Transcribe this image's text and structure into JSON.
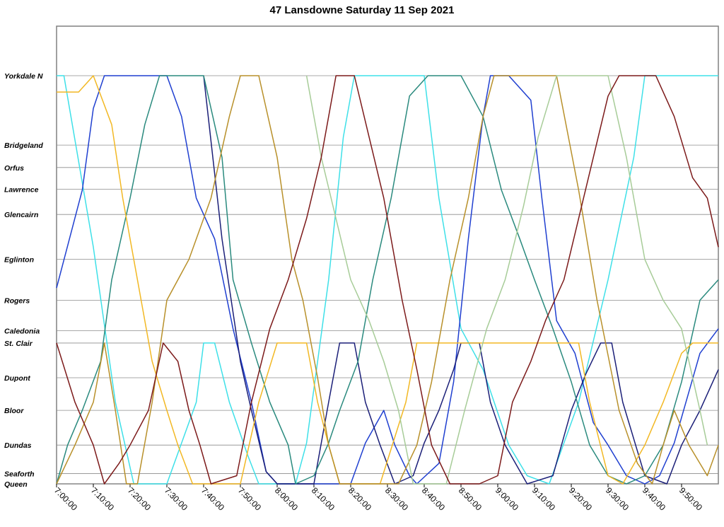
{
  "chart_data": {
    "type": "line",
    "title": "47 Lansdowne Saturday 11 Sep 2021",
    "x_unit": "time of day",
    "xlim": [
      "7:00:00",
      "10:00:00"
    ],
    "x_ticks": [
      "7:00:00",
      "7:10:00",
      "7:20:00",
      "7:30:00",
      "7:40:00",
      "7:50:00",
      "8:00:00",
      "8:10:00",
      "8:20:00",
      "8:30:00",
      "8:40:00",
      "8:50:00",
      "9:00:00",
      "9:10:00",
      "9:20:00",
      "9:30:00",
      "9:40:00",
      "9:50:00"
    ],
    "y_axis": "stops (Queen at bottom, Yorkdale N at top)",
    "stops": [
      {
        "name": "Yorkdale N",
        "pos": 0.0
      },
      {
        "name": "Bridgeland",
        "pos": 0.17
      },
      {
        "name": "Orfus",
        "pos": 0.225
      },
      {
        "name": "Lawrence",
        "pos": 0.278
      },
      {
        "name": "Glencairn",
        "pos": 0.34
      },
      {
        "name": "Eglinton",
        "pos": 0.45
      },
      {
        "name": "Rogers",
        "pos": 0.55
      },
      {
        "name": "Caledonia",
        "pos": 0.625
      },
      {
        "name": "St. Clair",
        "pos": 0.655
      },
      {
        "name": "Dupont",
        "pos": 0.74
      },
      {
        "name": "Bloor",
        "pos": 0.82
      },
      {
        "name": "Dundas",
        "pos": 0.905
      },
      {
        "name": "Seaforth",
        "pos": 0.975
      },
      {
        "name": "Queen",
        "pos": 1.0
      }
    ],
    "grid": true,
    "legend": "none",
    "series": [
      {
        "color": "#3EE0E8",
        "points": [
          [
            "7:00:00",
            0.0
          ],
          [
            "7:02:00",
            0.0
          ],
          [
            "7:10:00",
            0.42
          ],
          [
            "7:16:00",
            0.8
          ],
          [
            "7:21:00",
            1.0
          ],
          [
            "7:26:00",
            1.0
          ],
          [
            "7:30:00",
            1.0
          ],
          [
            "7:38:00",
            0.8
          ],
          [
            "7:40:00",
            0.655
          ],
          [
            "7:43:00",
            0.655
          ],
          [
            "7:47:00",
            0.8
          ],
          [
            "7:52:00",
            0.93
          ],
          [
            "7:55:00",
            1.0
          ],
          [
            "8:05:00",
            1.0
          ],
          [
            "8:08:00",
            0.9
          ],
          [
            "8:14:00",
            0.5
          ],
          [
            "8:18:00",
            0.15
          ],
          [
            "8:21:00",
            0.0
          ],
          [
            "8:40:00",
            0.0
          ],
          [
            "8:44:00",
            0.3
          ],
          [
            "8:50:00",
            0.62
          ],
          [
            "8:56:00",
            0.72
          ],
          [
            "9:03:00",
            0.905
          ],
          [
            "9:08:00",
            0.98
          ],
          [
            "9:14:00",
            1.0
          ],
          [
            "9:18:00",
            0.9
          ],
          [
            "9:22:00",
            0.8
          ],
          [
            "9:30:00",
            0.5
          ],
          [
            "9:37:00",
            0.2
          ],
          [
            "9:40:00",
            0.0
          ],
          [
            "10:00:00",
            0.0
          ]
        ]
      },
      {
        "color": "#1F3FD0",
        "points": [
          [
            "7:00:00",
            0.52
          ],
          [
            "7:07:00",
            0.28
          ],
          [
            "7:10:00",
            0.08
          ],
          [
            "7:13:00",
            0.0
          ],
          [
            "7:25:00",
            0.0
          ],
          [
            "7:30:00",
            0.0
          ],
          [
            "7:34:00",
            0.1
          ],
          [
            "7:38:00",
            0.3
          ],
          [
            "7:43:00",
            0.4
          ],
          [
            "7:48:00",
            0.62
          ],
          [
            "7:53:00",
            0.8
          ],
          [
            "7:57:00",
            0.97
          ],
          [
            "8:00:00",
            1.0
          ],
          [
            "8:20:00",
            1.0
          ],
          [
            "8:24:00",
            0.9
          ],
          [
            "8:29:00",
            0.82
          ],
          [
            "8:32:00",
            0.905
          ],
          [
            "8:36:00",
            0.98
          ],
          [
            "8:38:00",
            1.0
          ],
          [
            "8:44:00",
            0.95
          ],
          [
            "8:48:00",
            0.75
          ],
          [
            "8:52:00",
            0.4
          ],
          [
            "8:56:00",
            0.1
          ],
          [
            "8:58:00",
            0.0
          ],
          [
            "9:03:00",
            0.0
          ],
          [
            "9:09:00",
            0.06
          ],
          [
            "9:12:00",
            0.3
          ],
          [
            "9:16:00",
            0.6
          ],
          [
            "9:21:00",
            0.68
          ],
          [
            "9:26:00",
            0.85
          ],
          [
            "9:30:00",
            0.905
          ],
          [
            "9:35:00",
            0.98
          ],
          [
            "9:40:00",
            1.0
          ],
          [
            "9:44:00",
            0.98
          ],
          [
            "9:48:00",
            0.9
          ],
          [
            "9:55:00",
            0.68
          ],
          [
            "10:00:00",
            0.62
          ]
        ]
      },
      {
        "color": "#1B1F78",
        "points": [
          [
            "7:40:00",
            0.0
          ],
          [
            "7:45:00",
            0.4
          ],
          [
            "7:50:00",
            0.7
          ],
          [
            "7:53:00",
            0.82
          ],
          [
            "7:57:00",
            0.97
          ],
          [
            "8:00:00",
            1.0
          ],
          [
            "8:10:00",
            1.0
          ],
          [
            "8:14:00",
            0.8
          ],
          [
            "8:17:00",
            0.655
          ],
          [
            "8:21:00",
            0.655
          ],
          [
            "8:24:00",
            0.8
          ],
          [
            "8:28:00",
            0.905
          ],
          [
            "8:32:00",
            1.0
          ],
          [
            "8:37:00",
            0.98
          ],
          [
            "8:40:00",
            0.9
          ],
          [
            "8:44:00",
            0.82
          ],
          [
            "8:48:00",
            0.72
          ],
          [
            "8:50:00",
            0.655
          ],
          [
            "8:55:00",
            0.655
          ],
          [
            "8:58:00",
            0.8
          ],
          [
            "9:02:00",
            0.905
          ],
          [
            "9:08:00",
            1.0
          ],
          [
            "9:15:00",
            0.98
          ],
          [
            "9:20:00",
            0.82
          ],
          [
            "9:24:00",
            0.73
          ],
          [
            "9:28:00",
            0.655
          ],
          [
            "9:31:00",
            0.655
          ],
          [
            "9:34:00",
            0.8
          ],
          [
            "9:40:00",
            0.98
          ],
          [
            "9:46:00",
            1.0
          ],
          [
            "9:50:00",
            0.905
          ],
          [
            "9:55:00",
            0.82
          ],
          [
            "10:00:00",
            0.72
          ]
        ]
      },
      {
        "color": "#2A8A7E",
        "points": [
          [
            "7:00:00",
            1.0
          ],
          [
            "7:03:00",
            0.905
          ],
          [
            "7:07:00",
            0.82
          ],
          [
            "7:12:00",
            0.7
          ],
          [
            "7:15:00",
            0.5
          ],
          [
            "7:20:00",
            0.3
          ],
          [
            "7:24:00",
            0.12
          ],
          [
            "7:28:00",
            0.0
          ],
          [
            "7:40:00",
            0.0
          ],
          [
            "7:45:00",
            0.2
          ],
          [
            "7:48:00",
            0.5
          ],
          [
            "7:53:00",
            0.655
          ],
          [
            "7:58:00",
            0.8
          ],
          [
            "8:03:00",
            0.905
          ],
          [
            "8:05:00",
            1.0
          ],
          [
            "8:10:00",
            0.98
          ],
          [
            "8:14:00",
            0.9
          ],
          [
            "8:17:00",
            0.82
          ],
          [
            "8:22:00",
            0.7
          ],
          [
            "8:26:00",
            0.5
          ],
          [
            "8:31:00",
            0.3
          ],
          [
            "8:36:00",
            0.05
          ],
          [
            "8:41:00",
            0.0
          ],
          [
            "8:50:00",
            0.0
          ],
          [
            "8:56:00",
            0.1
          ],
          [
            "9:01:00",
            0.28
          ],
          [
            "9:06:00",
            0.4
          ],
          [
            "9:10:00",
            0.5
          ],
          [
            "9:15:00",
            0.62
          ],
          [
            "9:20:00",
            0.75
          ],
          [
            "9:25:00",
            0.905
          ],
          [
            "9:30:00",
            0.98
          ],
          [
            "9:35:00",
            1.0
          ],
          [
            "9:40:00",
            0.98
          ],
          [
            "9:45:00",
            0.905
          ],
          [
            "9:50:00",
            0.75
          ],
          [
            "9:55:00",
            0.55
          ],
          [
            "10:00:00",
            0.5
          ]
        ]
      },
      {
        "color": "#F2B824",
        "points": [
          [
            "7:00:00",
            0.04
          ],
          [
            "7:06:00",
            0.04
          ],
          [
            "7:10:00",
            0.0
          ],
          [
            "7:15:00",
            0.12
          ],
          [
            "7:18:00",
            0.3
          ],
          [
            "7:22:00",
            0.5
          ],
          [
            "7:26:00",
            0.7
          ],
          [
            "7:30:00",
            0.82
          ],
          [
            "7:33:00",
            0.905
          ],
          [
            "7:37:00",
            1.0
          ],
          [
            "7:50:00",
            1.0
          ],
          [
            "7:55:00",
            0.8
          ],
          [
            "8:00:00",
            0.655
          ],
          [
            "8:08:00",
            0.655
          ],
          [
            "8:11:00",
            0.8
          ],
          [
            "8:14:00",
            0.905
          ],
          [
            "8:17:00",
            1.0
          ],
          [
            "8:28:00",
            1.0
          ],
          [
            "8:35:00",
            0.8
          ],
          [
            "8:38:00",
            0.655
          ],
          [
            "9:10:00",
            0.655
          ],
          [
            "9:22:00",
            0.655
          ],
          [
            "9:25:00",
            0.8
          ],
          [
            "9:30:00",
            0.98
          ],
          [
            "9:34:00",
            1.0
          ],
          [
            "9:40:00",
            0.905
          ],
          [
            "9:45:00",
            0.8
          ],
          [
            "9:50:00",
            0.68
          ],
          [
            "9:53:00",
            0.655
          ],
          [
            "10:00:00",
            0.655
          ]
        ]
      },
      {
        "color": "#B8902A",
        "points": [
          [
            "7:00:00",
            1.0
          ],
          [
            "7:05:00",
            0.905
          ],
          [
            "7:10:00",
            0.8
          ],
          [
            "7:13:00",
            0.655
          ],
          [
            "7:16:00",
            0.82
          ],
          [
            "7:19:00",
            1.0
          ],
          [
            "7:22:00",
            1.0
          ],
          [
            "7:26:00",
            0.8
          ],
          [
            "7:30:00",
            0.55
          ],
          [
            "7:36:00",
            0.45
          ],
          [
            "7:42:00",
            0.3
          ],
          [
            "7:47:00",
            0.1
          ],
          [
            "7:50:00",
            0.0
          ],
          [
            "7:55:00",
            0.0
          ],
          [
            "8:00:00",
            0.2
          ],
          [
            "8:04:00",
            0.45
          ],
          [
            "8:07:00",
            0.55
          ],
          [
            "8:11:00",
            0.74
          ],
          [
            "8:14:00",
            0.905
          ],
          [
            "8:17:00",
            1.0
          ],
          [
            "8:33:00",
            1.0
          ],
          [
            "8:38:00",
            0.905
          ],
          [
            "8:42:00",
            0.75
          ],
          [
            "8:47:00",
            0.5
          ],
          [
            "8:52:00",
            0.3
          ],
          [
            "8:56:00",
            0.1
          ],
          [
            "8:59:00",
            0.0
          ],
          [
            "9:16:00",
            0.0
          ],
          [
            "9:22:00",
            0.28
          ],
          [
            "9:27:00",
            0.55
          ],
          [
            "9:33:00",
            0.82
          ],
          [
            "9:38:00",
            0.95
          ],
          [
            "9:42:00",
            1.0
          ],
          [
            "9:45:00",
            0.905
          ],
          [
            "9:48:00",
            0.82
          ],
          [
            "9:52:00",
            0.905
          ],
          [
            "9:57:00",
            0.98
          ],
          [
            "10:00:00",
            0.905
          ]
        ]
      },
      {
        "color": "#A7CC98",
        "points": [
          [
            "8:08:00",
            0.0
          ],
          [
            "8:12:00",
            0.2
          ],
          [
            "8:16:00",
            0.35
          ],
          [
            "8:20:00",
            0.5
          ],
          [
            "8:25:00",
            0.6
          ],
          [
            "8:29:00",
            0.7
          ],
          [
            "8:33:00",
            0.82
          ],
          [
            "8:37:00",
            1.0
          ],
          [
            "8:46:00",
            1.0
          ],
          [
            "8:51:00",
            0.82
          ],
          [
            "8:57:00",
            0.62
          ],
          [
            "9:02:00",
            0.5
          ],
          [
            "9:07:00",
            0.32
          ],
          [
            "9:11:00",
            0.15
          ],
          [
            "9:16:00",
            0.0
          ],
          [
            "9:30:00",
            0.0
          ],
          [
            "9:35:00",
            0.2
          ],
          [
            "9:40:00",
            0.45
          ],
          [
            "9:45:00",
            0.55
          ],
          [
            "9:50:00",
            0.62
          ],
          [
            "9:55:00",
            0.82
          ],
          [
            "9:57:00",
            0.905
          ]
        ]
      },
      {
        "color": "#7C1A1A",
        "points": [
          [
            "7:00:00",
            0.655
          ],
          [
            "7:05:00",
            0.8
          ],
          [
            "7:10:00",
            0.905
          ],
          [
            "7:13:00",
            1.0
          ],
          [
            "7:17:00",
            0.95
          ],
          [
            "7:20:00",
            0.905
          ],
          [
            "7:25:00",
            0.82
          ],
          [
            "7:29:00",
            0.655
          ],
          [
            "7:33:00",
            0.7
          ],
          [
            "7:36:00",
            0.82
          ],
          [
            "7:39:00",
            0.905
          ],
          [
            "7:42:00",
            1.0
          ],
          [
            "7:49:00",
            0.98
          ],
          [
            "7:53:00",
            0.8
          ],
          [
            "7:58:00",
            0.62
          ],
          [
            "8:03:00",
            0.5
          ],
          [
            "8:08:00",
            0.35
          ],
          [
            "8:12:00",
            0.2
          ],
          [
            "8:16:00",
            0.0
          ],
          [
            "8:21:00",
            0.0
          ],
          [
            "8:25:00",
            0.15
          ],
          [
            "8:29:00",
            0.3
          ],
          [
            "8:34:00",
            0.55
          ],
          [
            "8:38:00",
            0.72
          ],
          [
            "8:42:00",
            0.905
          ],
          [
            "8:47:00",
            1.0
          ],
          [
            "8:55:00",
            1.0
          ],
          [
            "9:00:00",
            0.98
          ],
          [
            "9:04:00",
            0.8
          ],
          [
            "9:09:00",
            0.7
          ],
          [
            "9:13:00",
            0.6
          ],
          [
            "9:18:00",
            0.5
          ],
          [
            "9:22:00",
            0.35
          ],
          [
            "9:26:00",
            0.2
          ],
          [
            "9:30:00",
            0.05
          ],
          [
            "9:33:00",
            0.0
          ],
          [
            "9:43:00",
            0.0
          ],
          [
            "9:48:00",
            0.1
          ],
          [
            "9:53:00",
            0.25
          ],
          [
            "9:57:00",
            0.3
          ],
          [
            "10:00:00",
            0.42
          ]
        ]
      }
    ]
  }
}
